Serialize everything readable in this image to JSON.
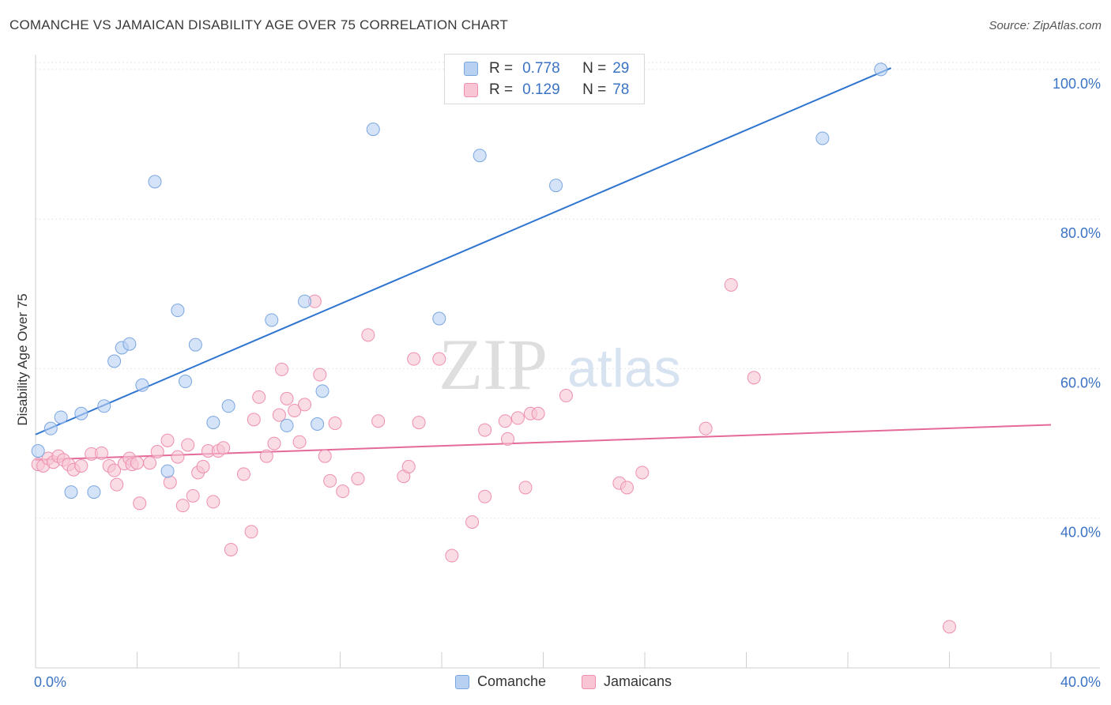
{
  "title": "COMANCHE VS JAMAICAN DISABILITY AGE OVER 75 CORRELATION CHART",
  "source": "Source: ZipAtlas.com",
  "watermark": {
    "zip": "ZIP",
    "atlas": "atlas"
  },
  "legend": {
    "r_label": "R =",
    "n_label": "N =",
    "rows": [
      {
        "name": "Comanche",
        "r": "0.778",
        "n": "29"
      },
      {
        "name": "Jamaicans",
        "r": "0.129",
        "n": "78"
      }
    ]
  },
  "colors": {
    "comanche_fill": "#b8d1f3",
    "comanche_stroke": "#7aa6e0",
    "comanche_line": "#2f74d0",
    "jamaicans_fill": "#f7c5d4",
    "jamaicans_stroke": "#ee8fae",
    "jamaicans_line": "#e46a99",
    "axis_text": "#3b73c4",
    "grid": "#e6e6e6"
  },
  "chart_data": {
    "type": "scatter",
    "title": "COMANCHE VS JAMAICAN DISABILITY AGE OVER 75 CORRELATION CHART",
    "xlabel": "",
    "ylabel": "Disability Age Over 75",
    "xlim": [
      0,
      40
    ],
    "ylim": [
      20,
      102
    ],
    "x_tick_labels": [
      {
        "value": 0,
        "label": "0.0%"
      },
      {
        "value": 40,
        "label": "40.0%"
      }
    ],
    "y_tick_labels": [
      {
        "value": 40,
        "label": "40.0%"
      },
      {
        "value": 60,
        "label": "60.0%"
      },
      {
        "value": 80,
        "label": "80.0%"
      },
      {
        "value": 100,
        "label": "100.0%"
      }
    ],
    "grid": true,
    "legend_position": "top-center",
    "series": [
      {
        "name": "Comanche",
        "points": [
          [
            0.1,
            49.0
          ],
          [
            0.6,
            52.0
          ],
          [
            1.0,
            53.5
          ],
          [
            1.8,
            54.0
          ],
          [
            2.7,
            55.0
          ],
          [
            3.1,
            61.0
          ],
          [
            3.4,
            62.8
          ],
          [
            3.7,
            63.3
          ],
          [
            4.2,
            57.8
          ],
          [
            4.7,
            85.0
          ],
          [
            5.6,
            67.8
          ],
          [
            5.9,
            58.3
          ],
          [
            6.3,
            63.2
          ],
          [
            7.6,
            55.0
          ],
          [
            7.0,
            52.8
          ],
          [
            9.3,
            66.5
          ],
          [
            9.9,
            52.4
          ],
          [
            10.6,
            69.0
          ],
          [
            11.1,
            52.6
          ],
          [
            11.3,
            57.0
          ],
          [
            13.3,
            92.0
          ],
          [
            15.9,
            66.7
          ],
          [
            17.5,
            88.5
          ],
          [
            20.5,
            84.5
          ],
          [
            31.0,
            90.8
          ],
          [
            33.3,
            100.0
          ],
          [
            1.4,
            43.5
          ],
          [
            2.3,
            43.5
          ],
          [
            5.2,
            46.3
          ]
        ],
        "trend": {
          "x0": 0,
          "y0": 51.2,
          "x1": 33.7,
          "y1": 100.2
        }
      },
      {
        "name": "Jamaicans",
        "points": [
          [
            0.1,
            47.2
          ],
          [
            0.3,
            47.0
          ],
          [
            0.5,
            48.0
          ],
          [
            0.7,
            47.5
          ],
          [
            0.9,
            48.3
          ],
          [
            1.1,
            47.8
          ],
          [
            1.3,
            47.2
          ],
          [
            1.5,
            46.5
          ],
          [
            1.8,
            47.0
          ],
          [
            2.2,
            48.6
          ],
          [
            2.6,
            48.7
          ],
          [
            2.9,
            47.0
          ],
          [
            3.1,
            46.4
          ],
          [
            3.5,
            47.3
          ],
          [
            3.7,
            48.0
          ],
          [
            3.8,
            47.2
          ],
          [
            4.0,
            47.4
          ],
          [
            4.1,
            42.0
          ],
          [
            4.5,
            47.4
          ],
          [
            4.8,
            48.9
          ],
          [
            5.2,
            50.4
          ],
          [
            5.3,
            44.8
          ],
          [
            5.6,
            48.2
          ],
          [
            5.8,
            41.7
          ],
          [
            6.0,
            49.8
          ],
          [
            6.2,
            43.0
          ],
          [
            6.4,
            46.1
          ],
          [
            6.6,
            46.9
          ],
          [
            6.8,
            49.0
          ],
          [
            7.0,
            42.2
          ],
          [
            7.2,
            49.0
          ],
          [
            7.4,
            49.4
          ],
          [
            7.7,
            35.8
          ],
          [
            8.2,
            45.9
          ],
          [
            8.5,
            38.2
          ],
          [
            8.6,
            53.2
          ],
          [
            8.8,
            56.2
          ],
          [
            9.1,
            48.3
          ],
          [
            9.4,
            50.0
          ],
          [
            9.7,
            59.9
          ],
          [
            9.9,
            56.0
          ],
          [
            10.2,
            54.4
          ],
          [
            10.4,
            50.2
          ],
          [
            10.6,
            55.2
          ],
          [
            11.0,
            69.0
          ],
          [
            11.2,
            59.2
          ],
          [
            11.4,
            48.3
          ],
          [
            11.6,
            45.0
          ],
          [
            11.8,
            52.7
          ],
          [
            12.1,
            43.6
          ],
          [
            12.7,
            45.3
          ],
          [
            13.1,
            64.5
          ],
          [
            13.5,
            53.0
          ],
          [
            14.5,
            45.6
          ],
          [
            14.7,
            46.9
          ],
          [
            14.9,
            61.3
          ],
          [
            15.1,
            52.8
          ],
          [
            15.9,
            61.3
          ],
          [
            16.4,
            35.0
          ],
          [
            17.2,
            39.5
          ],
          [
            17.7,
            42.9
          ],
          [
            17.7,
            51.8
          ],
          [
            18.5,
            53.0
          ],
          [
            18.6,
            50.6
          ],
          [
            19.0,
            53.4
          ],
          [
            19.5,
            54.0
          ],
          [
            19.8,
            54.0
          ],
          [
            20.9,
            56.4
          ],
          [
            23.0,
            44.7
          ],
          [
            23.3,
            44.1
          ],
          [
            23.9,
            46.1
          ],
          [
            26.4,
            52.0
          ],
          [
            27.4,
            71.2
          ],
          [
            28.3,
            58.8
          ],
          [
            36.0,
            25.5
          ],
          [
            19.3,
            44.1
          ],
          [
            9.6,
            53.8
          ],
          [
            3.2,
            44.5
          ]
        ],
        "trend": {
          "x0": 0,
          "y0": 47.8,
          "x1": 40,
          "y1": 52.5
        }
      }
    ]
  }
}
